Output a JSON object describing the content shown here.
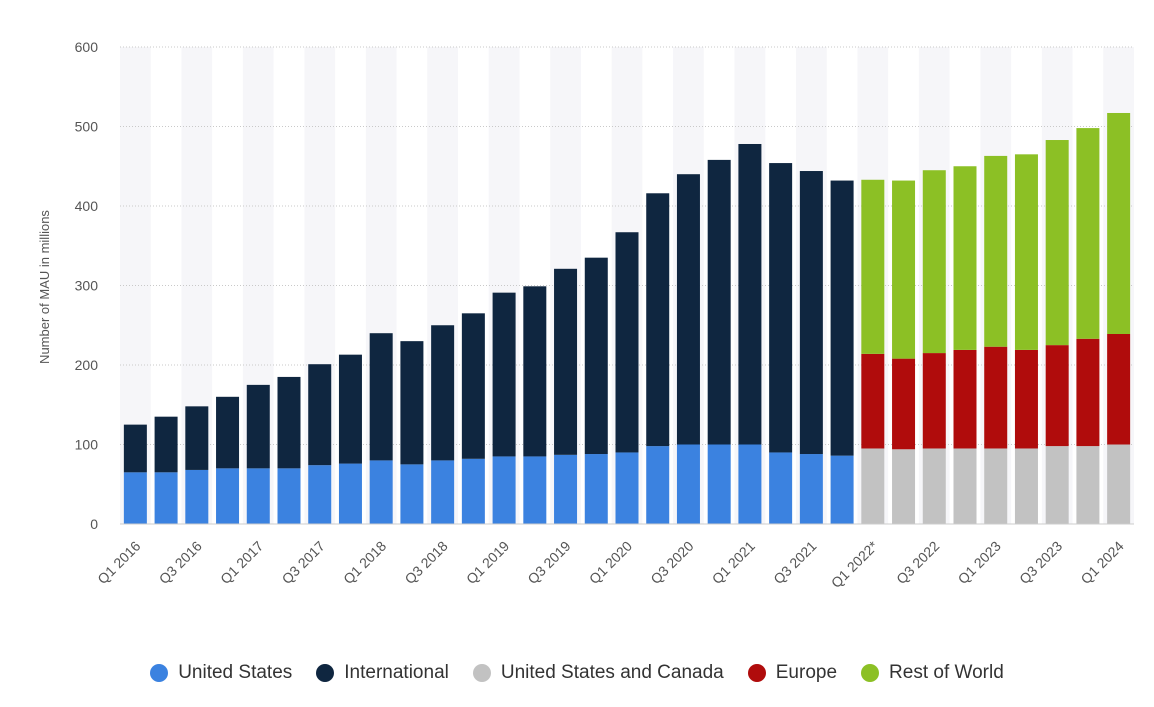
{
  "chart_data": {
    "type": "bar",
    "stacked": true,
    "ylabel": "Number of MAU in millions",
    "ylim": [
      0,
      600
    ],
    "yticks": [
      0,
      100,
      200,
      300,
      400,
      500,
      600
    ],
    "grid": true,
    "legend_position": "bottom",
    "categories": [
      "Q1 2016",
      "Q2 2016",
      "Q3 2016",
      "Q4 2016",
      "Q1 2017",
      "Q2 2017",
      "Q3 2017",
      "Q4 2017",
      "Q1 2018",
      "Q2 2018",
      "Q3 2018",
      "Q4 2018",
      "Q1 2019",
      "Q2 2019",
      "Q3 2019",
      "Q4 2019",
      "Q1 2020",
      "Q2 2020",
      "Q3 2020",
      "Q4 2020",
      "Q1 2021",
      "Q2 2021",
      "Q3 2021",
      "Q4 2021",
      "Q1 2022*",
      "Q2 2022",
      "Q3 2022",
      "Q4 2022",
      "Q1 2023",
      "Q2 2023",
      "Q3 2023",
      "Q4 2023",
      "Q1 2024"
    ],
    "tick_labels": [
      "Q1 2016",
      "",
      "Q3 2016",
      "",
      "Q1 2017",
      "",
      "Q3 2017",
      "",
      "Q1 2018",
      "",
      "Q3 2018",
      "",
      "Q1 2019",
      "",
      "Q3 2019",
      "",
      "Q1 2020",
      "",
      "Q3 2020",
      "",
      "Q1 2021",
      "",
      "Q3 2021",
      "",
      "Q1 2022*",
      "",
      "Q3 2022",
      "",
      "Q1 2023",
      "",
      "Q3 2023",
      "",
      "Q1 2024"
    ],
    "series": [
      {
        "name": "United States",
        "color": "#3b82e0",
        "values": [
          65,
          65,
          68,
          70,
          70,
          70,
          74,
          76,
          80,
          75,
          80,
          82,
          85,
          85,
          87,
          88,
          90,
          98,
          100,
          100,
          100,
          90,
          88,
          86,
          null,
          null,
          null,
          null,
          null,
          null,
          null,
          null,
          null
        ]
      },
      {
        "name": "International",
        "color": "#0f2640",
        "values": [
          60,
          70,
          80,
          90,
          105,
          115,
          127,
          137,
          160,
          155,
          170,
          183,
          206,
          214,
          234,
          247,
          277,
          318,
          340,
          358,
          378,
          364,
          356,
          346,
          null,
          null,
          null,
          null,
          null,
          null,
          null,
          null,
          null
        ]
      },
      {
        "name": "United States and Canada",
        "color": "#c2c2c2",
        "values": [
          null,
          null,
          null,
          null,
          null,
          null,
          null,
          null,
          null,
          null,
          null,
          null,
          null,
          null,
          null,
          null,
          null,
          null,
          null,
          null,
          null,
          null,
          null,
          null,
          95,
          94,
          95,
          95,
          95,
          95,
          98,
          98,
          100
        ]
      },
      {
        "name": "Europe",
        "color": "#b00c0c",
        "values": [
          null,
          null,
          null,
          null,
          null,
          null,
          null,
          null,
          null,
          null,
          null,
          null,
          null,
          null,
          null,
          null,
          null,
          null,
          null,
          null,
          null,
          null,
          null,
          null,
          119,
          114,
          120,
          124,
          128,
          124,
          127,
          135,
          139
        ]
      },
      {
        "name": "Rest of World",
        "color": "#8cc025",
        "values": [
          null,
          null,
          null,
          null,
          null,
          null,
          null,
          null,
          null,
          null,
          null,
          null,
          null,
          null,
          null,
          null,
          null,
          null,
          null,
          null,
          null,
          null,
          null,
          null,
          219,
          224,
          230,
          231,
          240,
          246,
          258,
          265,
          278
        ]
      }
    ]
  }
}
